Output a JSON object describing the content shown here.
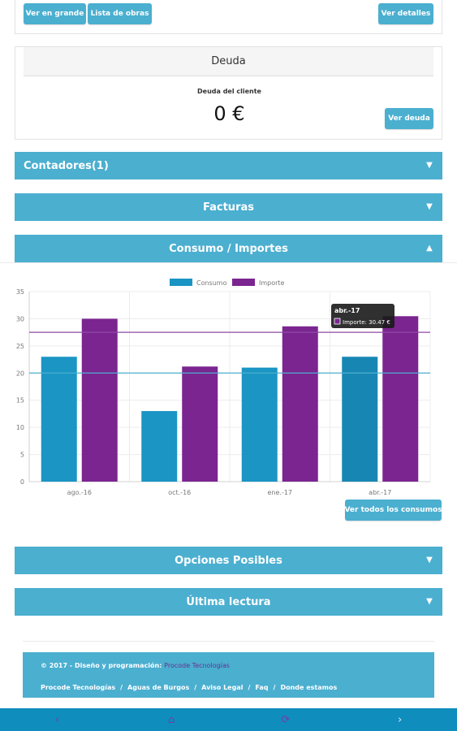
{
  "top_card": {
    "ver_en_grande": "Ver en grande",
    "lista_de_obras": "Lista de obras",
    "ver_detalles": "Ver detalles"
  },
  "debt": {
    "title": "Deuda",
    "label": "Deuda del cliente",
    "amount": "0 €",
    "button": "Ver deuda"
  },
  "panels": {
    "contadores": "Contadores(1)",
    "facturas": "Facturas",
    "consumo": "Consumo / Importes",
    "opciones": "Opciones Posibles",
    "ultima_lectura": "Última lectura"
  },
  "chart_data": {
    "type": "bar",
    "categories": [
      "ago.-16",
      "oct.-16",
      "ene.-17",
      "abr.-17"
    ],
    "series": [
      {
        "name": "Consumo",
        "values": [
          23,
          13,
          21,
          23
        ],
        "color": "#1a95c4"
      },
      {
        "name": "Importe",
        "values": [
          30,
          21.2,
          28.6,
          30.47
        ],
        "color": "#7b2590"
      }
    ],
    "reference_lines": [
      {
        "value": 27.5,
        "color": "#8e4aa6"
      },
      {
        "value": 20,
        "color": "#4bafd0"
      }
    ],
    "ylim": [
      0,
      35
    ],
    "yticks": [
      0,
      5,
      10,
      15,
      20,
      25,
      30,
      35
    ],
    "legend_position": "top",
    "grid": true,
    "tooltip": {
      "title": "abr.-17",
      "text": "Importe: 30.47 €"
    }
  },
  "ver_todos_consumos": "Ver todos los consumos",
  "footer": {
    "copyright": "© 2017 - Diseño y programación:",
    "brand": "Procode Tecnologías",
    "links": [
      "Procode Tecnologías",
      "Aguas de Burgos",
      "Aviso Legal",
      "Faq",
      "Donde estamos"
    ]
  },
  "bottom_nav": {
    "back": "‹",
    "home": "⌂",
    "refresh": "⟳",
    "forward": "›"
  }
}
